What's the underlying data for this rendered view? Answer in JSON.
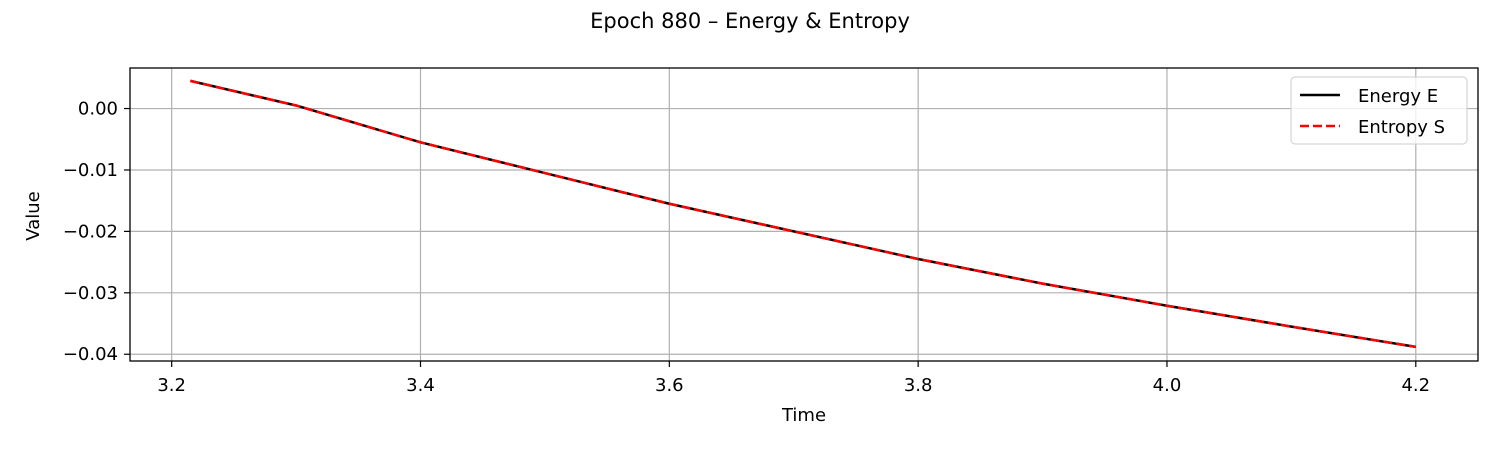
{
  "chart_data": {
    "type": "line",
    "title": "Epoch 880 – Energy & Entropy",
    "xlabel": "Time",
    "ylabel": "Value",
    "xlim": [
      3.1665,
      4.25
    ],
    "ylim": [
      -0.0411,
      0.0066
    ],
    "xticks": [
      3.2,
      3.4,
      3.6,
      3.8,
      4.0,
      4.2
    ],
    "xtick_labels": [
      "3.2",
      "3.4",
      "3.6",
      "3.8",
      "4.0",
      "4.2"
    ],
    "yticks": [
      0.0,
      -0.01,
      -0.02,
      -0.03,
      -0.04
    ],
    "ytick_labels": [
      "0.00",
      "−0.01",
      "−0.02",
      "−0.03",
      "−0.04"
    ],
    "grid": true,
    "legend_position": "top-right",
    "series": [
      {
        "name": "Energy E",
        "color": "#000000",
        "style": "solid",
        "x": [
          3.215,
          3.3,
          3.4,
          3.5,
          3.6,
          3.7,
          3.8,
          3.9,
          4.0,
          4.1,
          4.2
        ],
        "y": [
          0.0045,
          0.0005,
          -0.0055,
          -0.0105,
          -0.0155,
          -0.02,
          -0.0245,
          -0.0285,
          -0.0321,
          -0.0355,
          -0.0388
        ]
      },
      {
        "name": "Entropy S",
        "color": "#ff0000",
        "style": "dashed",
        "x": [
          3.215,
          3.3,
          3.4,
          3.5,
          3.6,
          3.7,
          3.8,
          3.9,
          4.0,
          4.1,
          4.2
        ],
        "y": [
          0.0045,
          0.0005,
          -0.0055,
          -0.0105,
          -0.0155,
          -0.02,
          -0.0245,
          -0.0285,
          -0.0321,
          -0.0355,
          -0.0388
        ]
      }
    ]
  }
}
